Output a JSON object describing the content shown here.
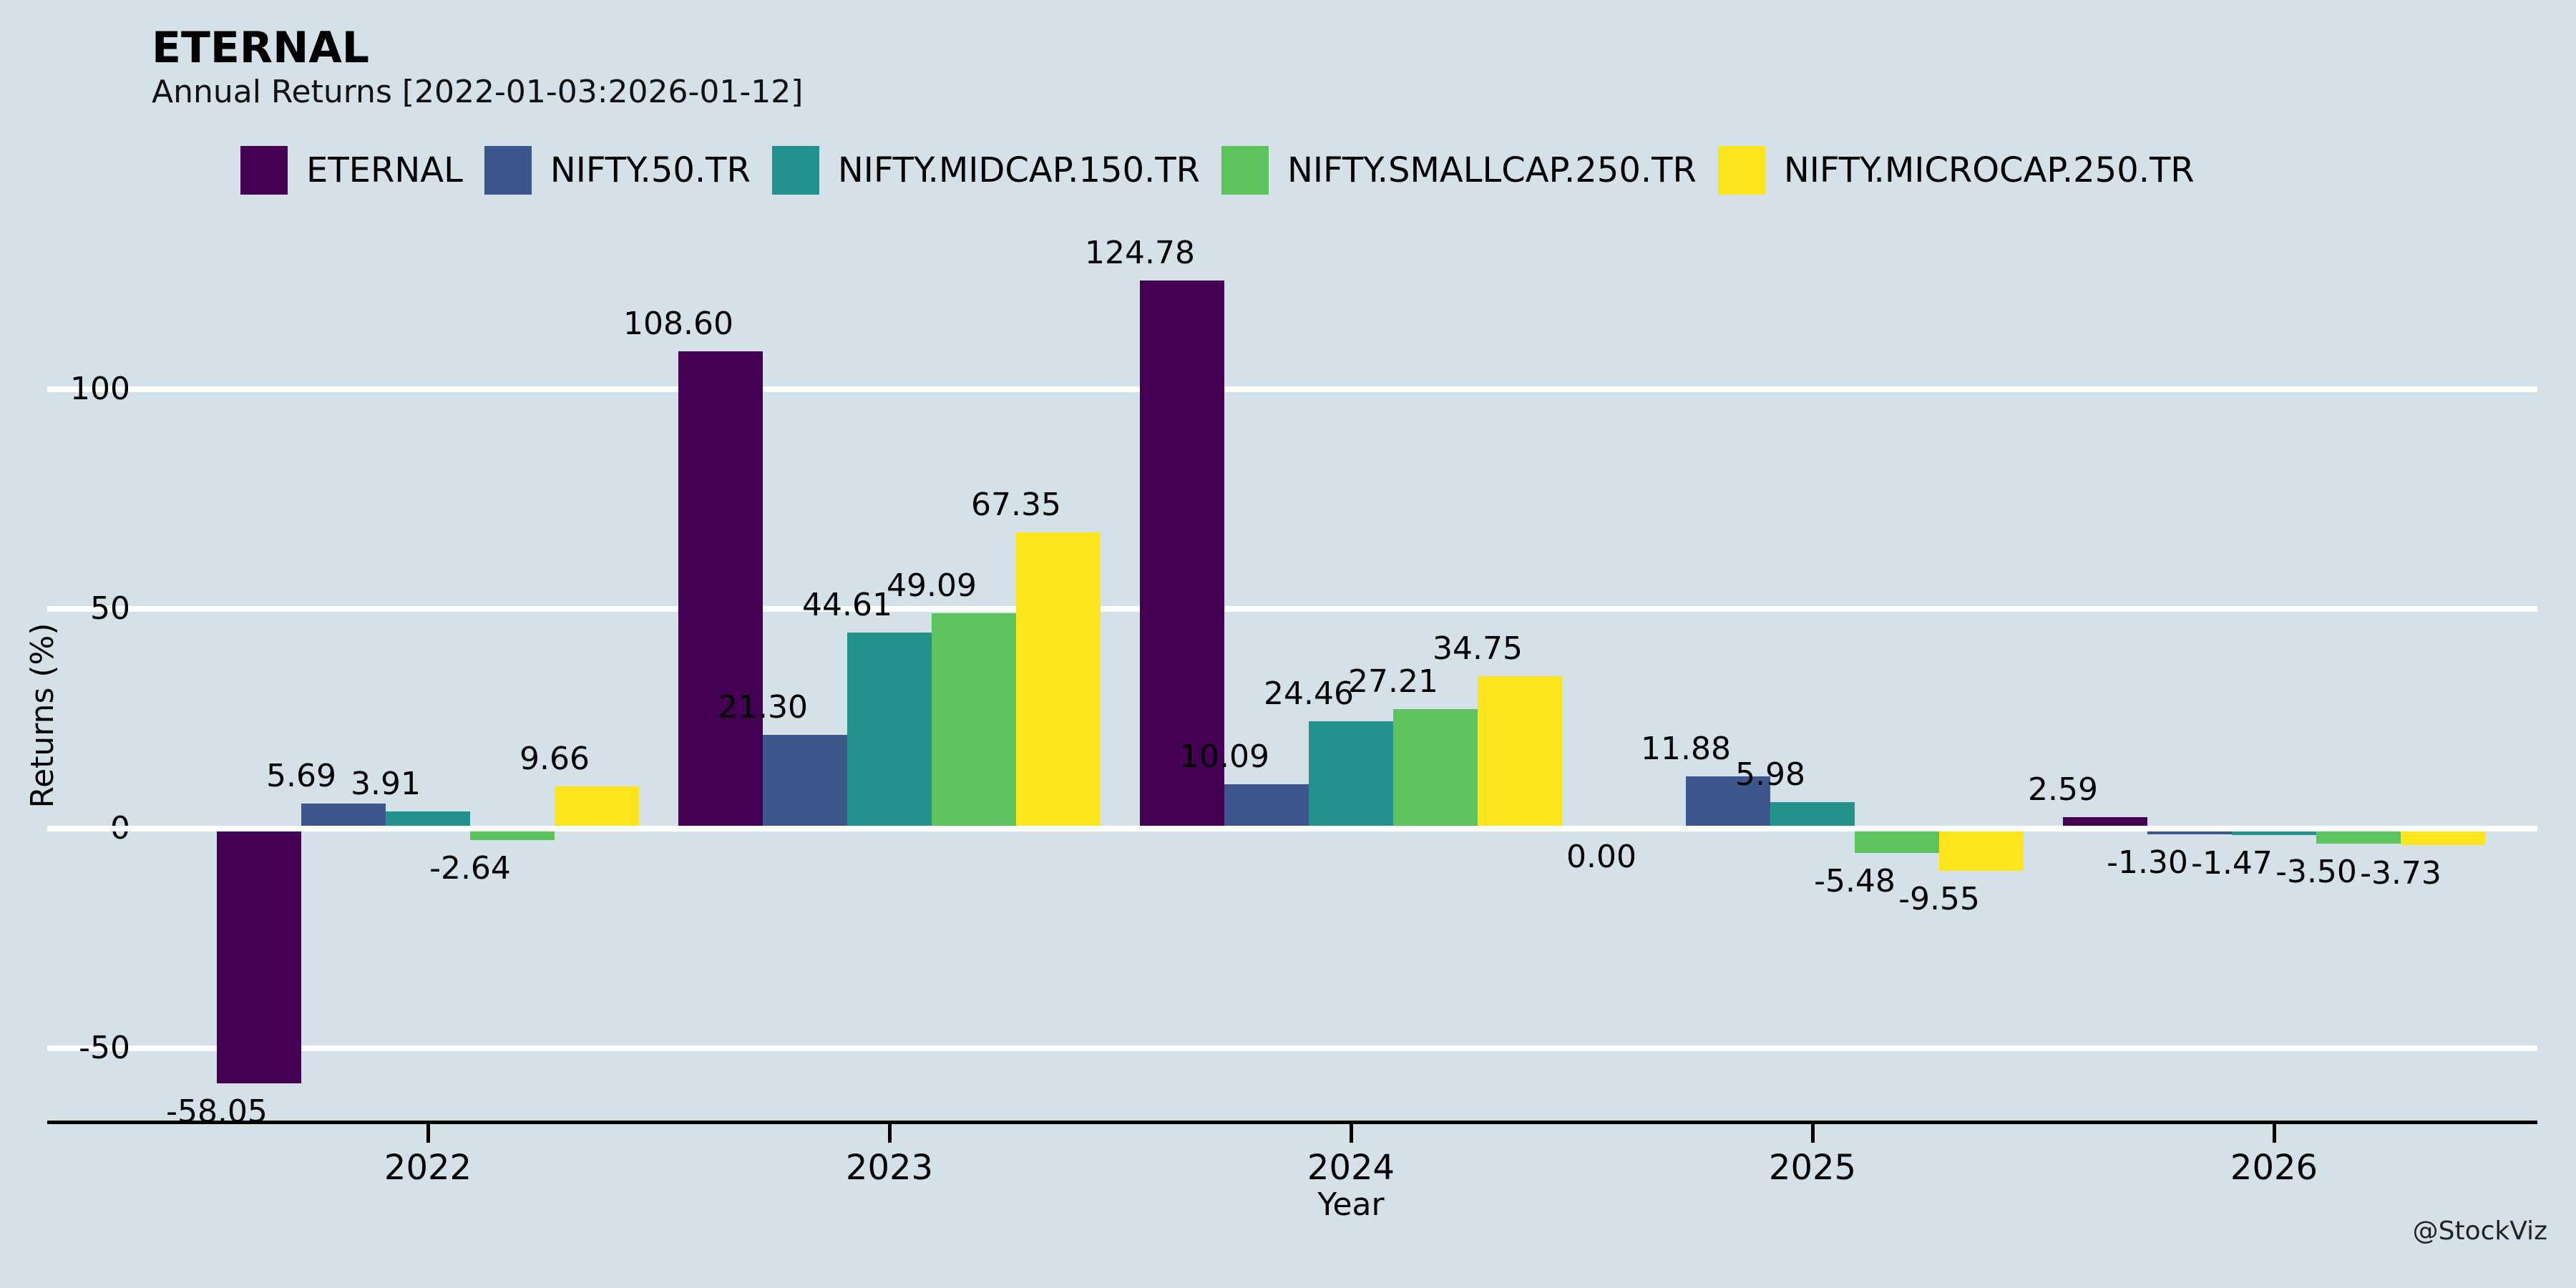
{
  "header": {
    "title": "ETERNAL",
    "subtitle": "Annual Returns [2022-01-03:2026-01-12]"
  },
  "watermark": "@StockViz",
  "colors": {
    "background": "#d5e1e8",
    "gridline": "#ffffff",
    "axis": "#000000",
    "text": "#000000"
  },
  "chart_data": {
    "type": "bar",
    "title": "ETERNAL",
    "subtitle": "Annual Returns [2022-01-03:2026-01-12]",
    "xlabel": "Year",
    "ylabel": "Returns (%)",
    "categories": [
      "2022",
      "2023",
      "2024",
      "2025",
      "2026"
    ],
    "series": [
      {
        "name": "ETERNAL",
        "color": "#440154",
        "values": [
          -58.05,
          108.6,
          124.78,
          0.0,
          2.59
        ]
      },
      {
        "name": "NIFTY.50.TR",
        "color": "#3d568c",
        "values": [
          5.69,
          21.3,
          10.09,
          11.88,
          -1.3
        ]
      },
      {
        "name": "NIFTY.MIDCAP.150.TR",
        "color": "#23918c",
        "values": [
          3.91,
          44.61,
          24.46,
          5.98,
          -1.47
        ]
      },
      {
        "name": "NIFTY.SMALLCAP.250.TR",
        "color": "#5cc35f",
        "values": [
          -2.64,
          49.09,
          27.21,
          -5.48,
          -3.5
        ]
      },
      {
        "name": "NIFTY.MICROCAP.250.TR",
        "color": "#fce51d",
        "values": [
          9.66,
          67.35,
          34.75,
          -9.55,
          -3.73
        ]
      }
    ],
    "value_label_format": "0.00",
    "yticks": [
      100,
      50,
      0,
      -50
    ],
    "ylim": [
      -67,
      131
    ],
    "grid": "horizontal white lines, zero line drawn over bars",
    "legend_position": "top"
  }
}
